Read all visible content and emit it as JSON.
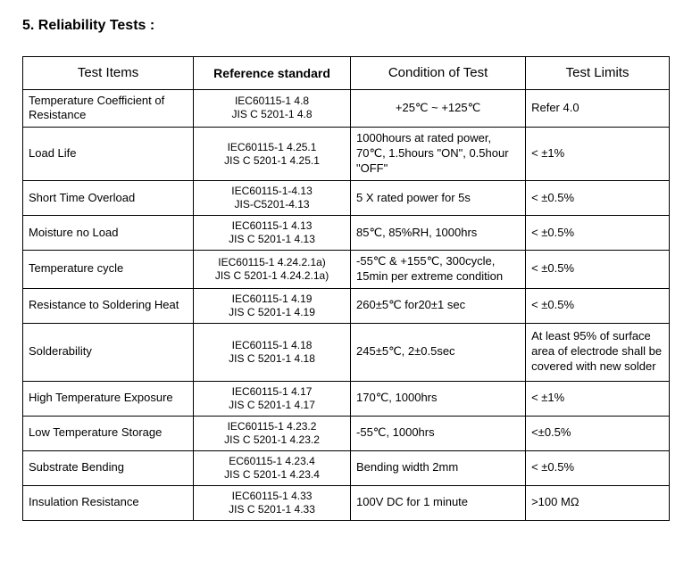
{
  "section_title": "5. Reliability Tests :",
  "headers": {
    "items": "Test Items",
    "reference": "Reference standard",
    "condition": "Condition of Test",
    "limits": "Test Limits"
  },
  "rows": [
    {
      "item": "Temperature Coefficient of Resistance",
      "ref1": "IEC60115-1 4.8",
      "ref2": "JIS C 5201-1 4.8",
      "condition": "+25℃ ~ +125℃",
      "limit": "Refer 4.0"
    },
    {
      "item": "Load Life",
      "ref1": "IEC60115-1 4.25.1",
      "ref2": "JIS C 5201-1 4.25.1",
      "condition": "1000hours at rated power, 70℃, 1.5hours \"ON\", 0.5hour \"OFF\"",
      "limit": "< ±1%"
    },
    {
      "item": "Short Time Overload",
      "ref1": "IEC60115-1-4.13",
      "ref2": "JIS-C5201-4.13",
      "condition": "5 X rated power for 5s",
      "limit": "< ±0.5%"
    },
    {
      "item": "Moisture no Load",
      "ref1": "IEC60115-1 4.13",
      "ref2": "JIS C 5201-1 4.13",
      "condition": "85℃, 85%RH, 1000hrs",
      "limit": "< ±0.5%"
    },
    {
      "item": "Temperature cycle",
      "ref1": "IEC60115-1 4.24.2.1a)",
      "ref2": "JIS C 5201-1 4.24.2.1a)",
      "condition": "-55℃ & +155℃, 300cycle, 15min per extreme condition",
      "limit": "< ±0.5%"
    },
    {
      "item": "Resistance to Soldering Heat",
      "ref1": "IEC60115-1 4.19",
      "ref2": "JIS C 5201-1 4.19",
      "condition": "260±5℃  for20±1 sec",
      "limit": "< ±0.5%"
    },
    {
      "item": "Solderability",
      "ref1": "IEC60115-1 4.18",
      "ref2": "JIS C 5201-1 4.18",
      "condition": "245±5℃, 2±0.5sec",
      "limit": "At least 95% of surface area of electrode shall be covered with new solder"
    },
    {
      "item": "High Temperature Exposure",
      "ref1": "IEC60115-1 4.17",
      "ref2": "JIS C 5201-1 4.17",
      "condition": "170℃, 1000hrs",
      "limit": "< ±1%"
    },
    {
      "item": "Low Temperature Storage",
      "ref1": "IEC60115-1 4.23.2",
      "ref2": "JIS C 5201-1 4.23.2",
      "condition": "-55℃, 1000hrs",
      "limit": "<±0.5%"
    },
    {
      "item": "Substrate Bending",
      "ref1": "EC60115-1 4.23.4",
      "ref2": "JIS C 5201-1 4.23.4",
      "condition": "Bending width 2mm",
      "limit": "< ±0.5%"
    },
    {
      "item": "Insulation Resistance",
      "ref1": "IEC60115-1 4.33",
      "ref2": "JIS C 5201-1 4.33",
      "condition": "100V DC for 1 minute",
      "limit": ">100 MΩ"
    }
  ]
}
